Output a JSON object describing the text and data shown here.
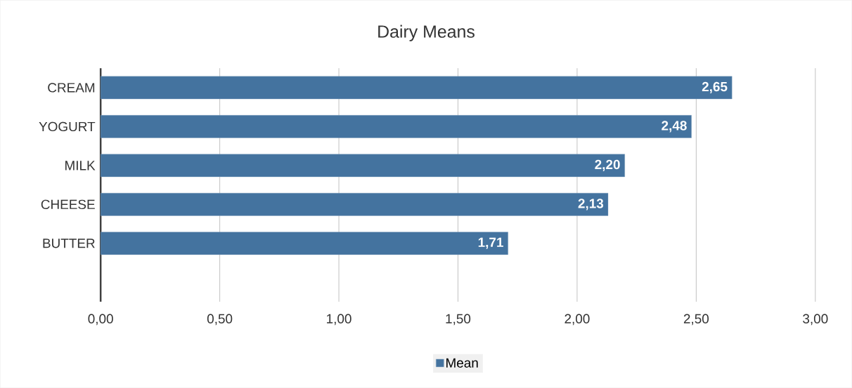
{
  "chart_data": {
    "type": "bar",
    "orientation": "horizontal",
    "title": "Dairy Means",
    "categories": [
      "CREAM",
      "YOGURT",
      "MILK",
      "CHEESE",
      "BUTTER",
      null
    ],
    "series": [
      {
        "name": "Mean",
        "color": "#44739f",
        "values": [
          2.65,
          2.48,
          2.2,
          2.13,
          1.71,
          null
        ],
        "value_labels": [
          "2,65",
          "2,48",
          "2,20",
          "2,13",
          "1,71",
          null
        ]
      }
    ],
    "xlim": [
      0,
      3
    ],
    "xticks": [
      {
        "value": 0,
        "label": "0,00"
      },
      {
        "value": 0.5,
        "label": "0,50"
      },
      {
        "value": 1,
        "label": "1,00"
      },
      {
        "value": 1.5,
        "label": "1,50"
      },
      {
        "value": 2,
        "label": "2,00"
      },
      {
        "value": 2.5,
        "label": "2,50"
      },
      {
        "value": 3,
        "label": "3,00"
      }
    ],
    "grid": "x",
    "legend": "bottom"
  }
}
